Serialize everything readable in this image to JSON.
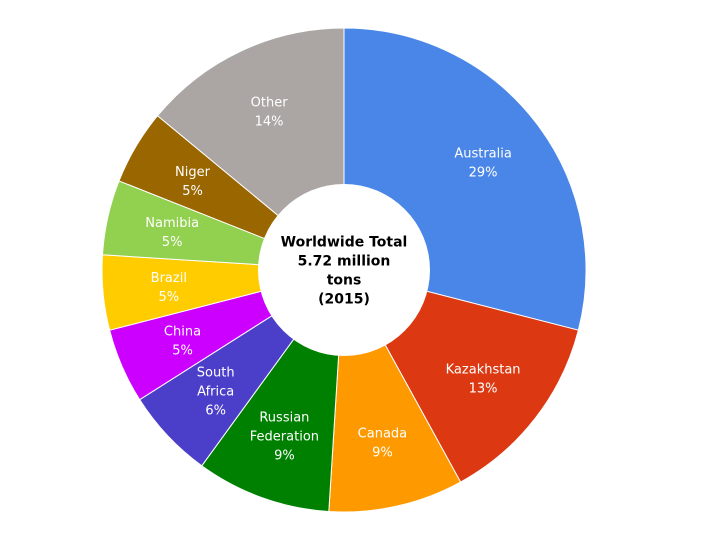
{
  "chart_data": {
    "type": "pie",
    "donut": true,
    "center_text": [
      "Worldwide Total",
      "5.72 million",
      "tons",
      "(2015)"
    ],
    "slices": [
      {
        "label": "Australia",
        "pct_label": "29%",
        "value": 29,
        "color": "#4a86e8"
      },
      {
        "label": "Kazakhstan",
        "pct_label": "13%",
        "value": 13,
        "color": "#dc3912"
      },
      {
        "label": "Canada",
        "pct_label": "9%",
        "value": 9,
        "color": "#ff9900"
      },
      {
        "label": "Russian Federation",
        "label_lines": [
          "Russian",
          "Federation"
        ],
        "pct_label": "9%",
        "value": 9,
        "color": "#008000"
      },
      {
        "label": "South Africa",
        "label_lines": [
          "South",
          "Africa"
        ],
        "pct_label": "6%",
        "value": 6,
        "color": "#4b3fc9"
      },
      {
        "label": "China",
        "pct_label": "5%",
        "value": 5,
        "color": "#cc00ff"
      },
      {
        "label": "Brazil",
        "pct_label": "5%",
        "value": 5,
        "color": "#ffcc00"
      },
      {
        "label": "Namibia",
        "pct_label": "5%",
        "value": 5,
        "color": "#92d050"
      },
      {
        "label": "Niger",
        "pct_label": "5%",
        "value": 5,
        "color": "#996600"
      },
      {
        "label": "Other",
        "pct_label": "14%",
        "value": 14,
        "color": "#aba6a3"
      }
    ]
  }
}
